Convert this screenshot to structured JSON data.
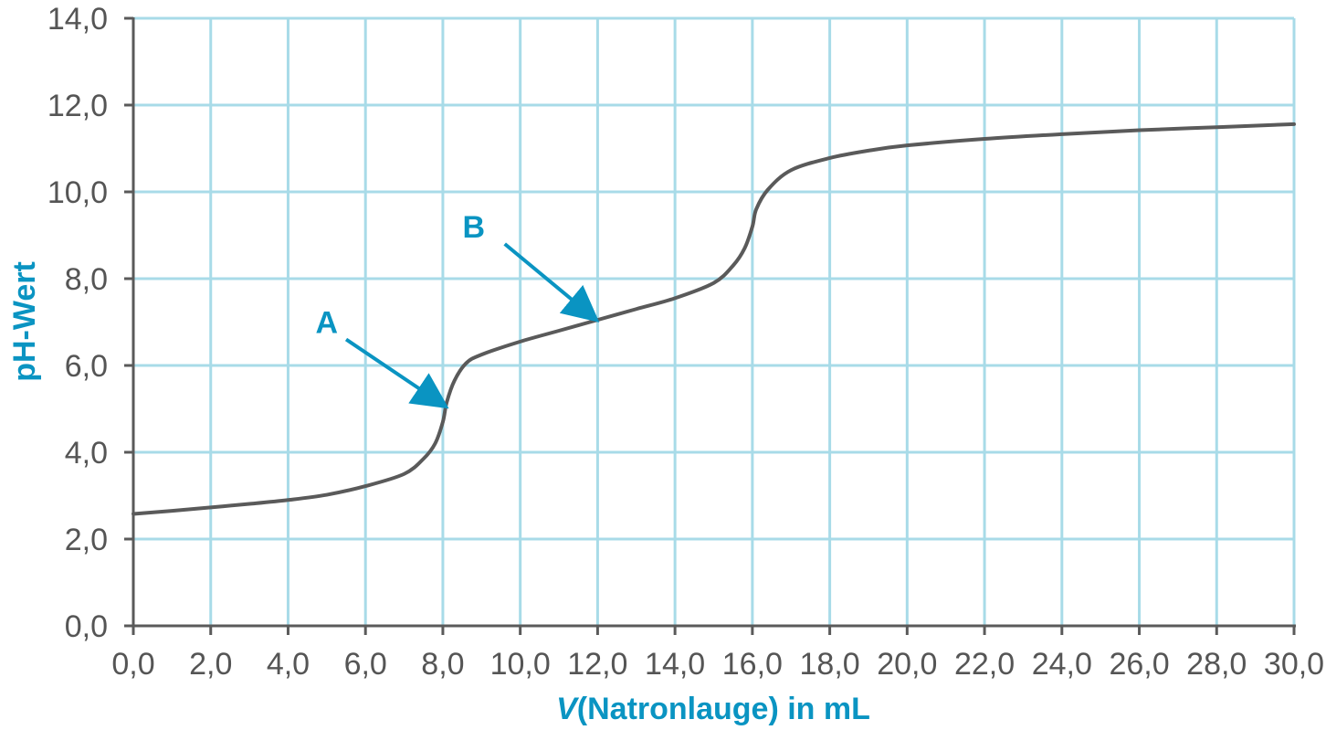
{
  "chart_data": {
    "type": "line",
    "xlabel_var": "V",
    "xlabel_rest": "(Natronlauge) in mL",
    "ylabel": "pH-Wert",
    "xlim": [
      0,
      30
    ],
    "ylim": [
      0,
      14
    ],
    "x_ticks": [
      0,
      2,
      4,
      6,
      8,
      10,
      12,
      14,
      16,
      18,
      20,
      22,
      24,
      26,
      28,
      30
    ],
    "x_tick_labels": [
      "0,0",
      "2,0",
      "4,0",
      "6,0",
      "8,0",
      "10,0",
      "12,0",
      "14,0",
      "16,0",
      "18,0",
      "20,0",
      "22,0",
      "24,0",
      "26,0",
      "28,0",
      "30,0"
    ],
    "y_ticks": [
      0,
      2,
      4,
      6,
      8,
      10,
      12,
      14
    ],
    "y_tick_labels": [
      "0,0",
      "2,0",
      "4,0",
      "6,0",
      "8,0",
      "10,0",
      "12,0",
      "14,0"
    ],
    "grid": true,
    "series": [
      {
        "points": [
          [
            0,
            2.58
          ],
          [
            1,
            2.65
          ],
          [
            2,
            2.73
          ],
          [
            3,
            2.81
          ],
          [
            4,
            2.9
          ],
          [
            5,
            3.02
          ],
          [
            6,
            3.22
          ],
          [
            7,
            3.5
          ],
          [
            7.5,
            3.85
          ],
          [
            7.8,
            4.2
          ],
          [
            8,
            4.7
          ],
          [
            8.1,
            5.15
          ],
          [
            8.3,
            5.65
          ],
          [
            8.6,
            6.05
          ],
          [
            9,
            6.25
          ],
          [
            10,
            6.55
          ],
          [
            11,
            6.8
          ],
          [
            12,
            7.05
          ],
          [
            13,
            7.3
          ],
          [
            14,
            7.55
          ],
          [
            15,
            7.9
          ],
          [
            15.5,
            8.3
          ],
          [
            15.8,
            8.7
          ],
          [
            16,
            9.2
          ],
          [
            16.1,
            9.6
          ],
          [
            16.4,
            10.05
          ],
          [
            17,
            10.5
          ],
          [
            18,
            10.78
          ],
          [
            19,
            10.95
          ],
          [
            20,
            11.07
          ],
          [
            22,
            11.22
          ],
          [
            24,
            11.33
          ],
          [
            26,
            11.42
          ],
          [
            28,
            11.49
          ],
          [
            30,
            11.56
          ]
        ]
      }
    ],
    "annotations": [
      {
        "label": "A",
        "label_at": [
          5.0,
          7.0
        ],
        "from": [
          5.5,
          6.6
        ],
        "to": [
          8.0,
          5.1
        ]
      },
      {
        "label": "B",
        "label_at": [
          8.8,
          9.2
        ],
        "from": [
          9.6,
          8.8
        ],
        "to": [
          11.9,
          7.1
        ]
      }
    ],
    "colors": {
      "curve": "#5a5a5a",
      "grid": "#a8dbe8",
      "axis": "#5a5a5a",
      "accent": "#0a94c2",
      "tick_text": "#555555"
    }
  }
}
